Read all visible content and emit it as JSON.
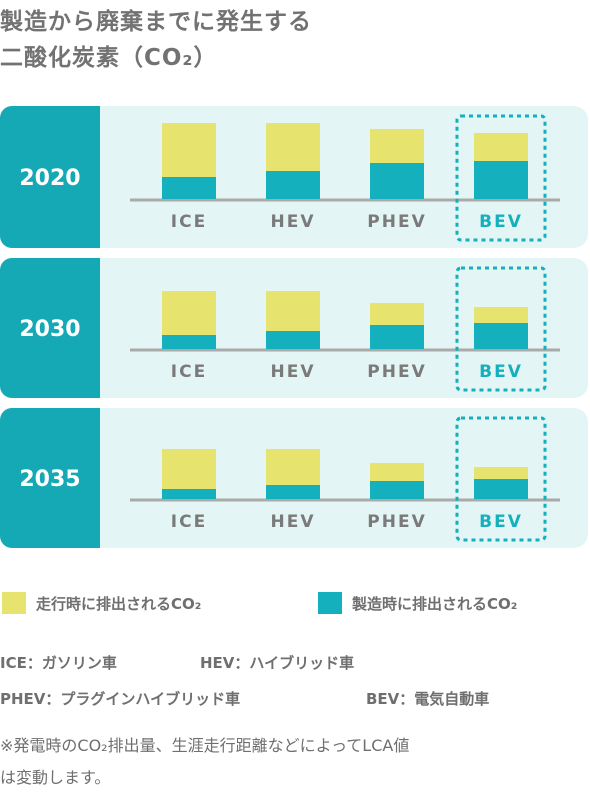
{
  "title": {
    "line1": "製造から廃棄までに発生する",
    "line2": "二酸化炭素（CO₂）"
  },
  "colors": {
    "running": "#e6e36f",
    "manufacturing": "#14b0bd",
    "panel_background": "#e3f5f4",
    "year_block": "#14a9b5",
    "baseline": "#aaaaaa",
    "bev_highlight": "#14b0bd"
  },
  "legend": {
    "running_label": "走行時に排出されるCO₂",
    "manufacturing_label": "製造時に排出されるCO₂"
  },
  "abbreviations": {
    "ice": "ICE：ガソリン車",
    "hev": "HEV：ハイブリッド車",
    "phev": "PHEV：プラグインハイブリッド車",
    "bev": "BEV：電気自動車"
  },
  "footnote": {
    "line1": "※発電時のCO₂排出量、生涯走行距離などによってLCA値",
    "line2": "は変動します。"
  },
  "chart_data": [
    {
      "type": "bar",
      "stacked": true,
      "year": "2020",
      "categories": [
        "ICE",
        "HEV",
        "PHEV",
        "BEV"
      ],
      "highlight": "BEV",
      "series": [
        {
          "name": "製造時に排出されるCO₂",
          "values": [
            22,
            28,
            36,
            38
          ]
        },
        {
          "name": "走行時に排出されるCO₂",
          "values": [
            54,
            48,
            34,
            28
          ]
        }
      ]
    },
    {
      "type": "bar",
      "stacked": true,
      "year": "2030",
      "categories": [
        "ICE",
        "HEV",
        "PHEV",
        "BEV"
      ],
      "highlight": "BEV",
      "series": [
        {
          "name": "製造時に排出されるCO₂",
          "values": [
            14,
            18,
            24,
            26
          ]
        },
        {
          "name": "走行時に排出されるCO₂",
          "values": [
            44,
            40,
            22,
            16
          ]
        }
      ]
    },
    {
      "type": "bar",
      "stacked": true,
      "year": "2035",
      "categories": [
        "ICE",
        "HEV",
        "PHEV",
        "BEV"
      ],
      "highlight": "BEV",
      "series": [
        {
          "name": "製造時に排出されるCO₂",
          "values": [
            10,
            14,
            18,
            20
          ]
        },
        {
          "name": "走行時に排出されるCO₂",
          "values": [
            40,
            36,
            18,
            12
          ]
        }
      ]
    }
  ]
}
